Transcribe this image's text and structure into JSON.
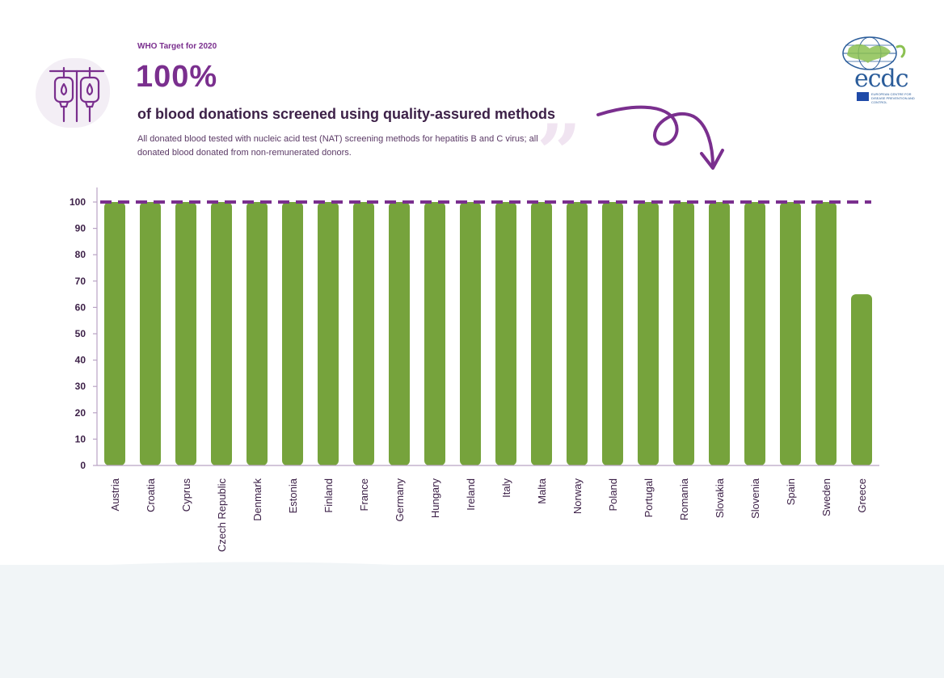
{
  "header": {
    "target_label": "WHO Target for 2020",
    "headline": "100%",
    "subtitle": "of blood donations screened using quality-assured methods",
    "description": "All donated blood tested with nucleic acid test (NAT) screening methods for hepatitis B and C virus; all donated blood donated from non-remunerated donors."
  },
  "logo": {
    "wordmark": "ecdc",
    "caption": "EUROPEAN CENTRE FOR DISEASE PREVENTION AND CONTROL"
  },
  "icons": [
    "blood-infusion-icon",
    "curved-arrow-icon",
    "quote-icon",
    "ecdc-logo"
  ],
  "colors": {
    "bar": "#76a33c",
    "target_line": "#7a2f8e",
    "accent": "#7a2f8e",
    "text": "#3d2148"
  },
  "chart_data": {
    "type": "bar",
    "categories": [
      "Austria",
      "Croatia",
      "Cyprus",
      "Czech Republic",
      "Denmark",
      "Estonia",
      "Finland",
      "France",
      "Germany",
      "Hungary",
      "Ireland",
      "Italy",
      "Malta",
      "Norway",
      "Poland",
      "Portugal",
      "Romania",
      "Slovakia",
      "Slovenia",
      "Spain",
      "Sweden",
      "Greece"
    ],
    "values": [
      100,
      100,
      100,
      100,
      100,
      100,
      100,
      100,
      100,
      100,
      100,
      100,
      100,
      100,
      100,
      100,
      100,
      100,
      100,
      100,
      100,
      65
    ],
    "target": 100,
    "yticks": [
      "0",
      "10",
      "20",
      "30",
      "40",
      "50",
      "60",
      "70",
      "80",
      "90",
      "100"
    ],
    "ylim": [
      0,
      100
    ],
    "grid": false,
    "legend": "none"
  }
}
